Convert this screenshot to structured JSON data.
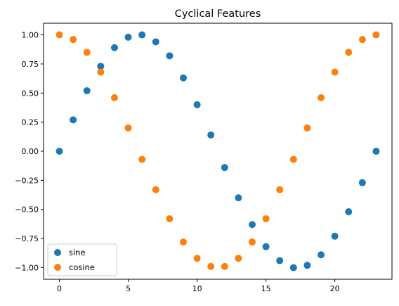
{
  "chart_data": {
    "type": "scatter",
    "title": "Cyclical Features",
    "xlabel": "",
    "ylabel": "",
    "xlim": [
      -1.15,
      24.15
    ],
    "ylim": [
      -1.1,
      1.1
    ],
    "xticks": [
      0,
      5,
      10,
      15,
      20
    ],
    "xtick_labels": [
      "0",
      "5",
      "10",
      "15",
      "20"
    ],
    "yticks": [
      -1.0,
      -0.75,
      -0.5,
      -0.25,
      0.0,
      0.25,
      0.5,
      0.75,
      1.0
    ],
    "ytick_labels": [
      "−1.00",
      "−0.75",
      "−0.50",
      "−0.25",
      "0.00",
      "0.25",
      "0.50",
      "0.75",
      "1.00"
    ],
    "grid": false,
    "legend_position": "lower-left",
    "x": [
      0,
      1,
      2,
      3,
      4,
      5,
      6,
      7,
      8,
      9,
      10,
      11,
      12,
      13,
      14,
      15,
      16,
      17,
      18,
      19,
      20,
      21,
      22,
      23
    ],
    "series": [
      {
        "name": "sine",
        "color": "#1f77b4",
        "values": [
          0.0,
          0.27,
          0.52,
          0.73,
          0.89,
          0.98,
          1.0,
          0.94,
          0.82,
          0.63,
          0.4,
          0.14,
          -0.14,
          -0.4,
          -0.63,
          -0.82,
          -0.94,
          -1.0,
          -0.98,
          -0.89,
          -0.73,
          -0.52,
          -0.27,
          0.0
        ]
      },
      {
        "name": "cosine",
        "color": "#ff7f0e",
        "values": [
          1.0,
          0.96,
          0.85,
          0.68,
          0.46,
          0.2,
          -0.07,
          -0.33,
          -0.58,
          -0.78,
          -0.92,
          -0.99,
          -0.99,
          -0.92,
          -0.78,
          -0.58,
          -0.33,
          -0.07,
          0.2,
          0.46,
          0.68,
          0.85,
          0.96,
          1.0
        ]
      }
    ]
  }
}
